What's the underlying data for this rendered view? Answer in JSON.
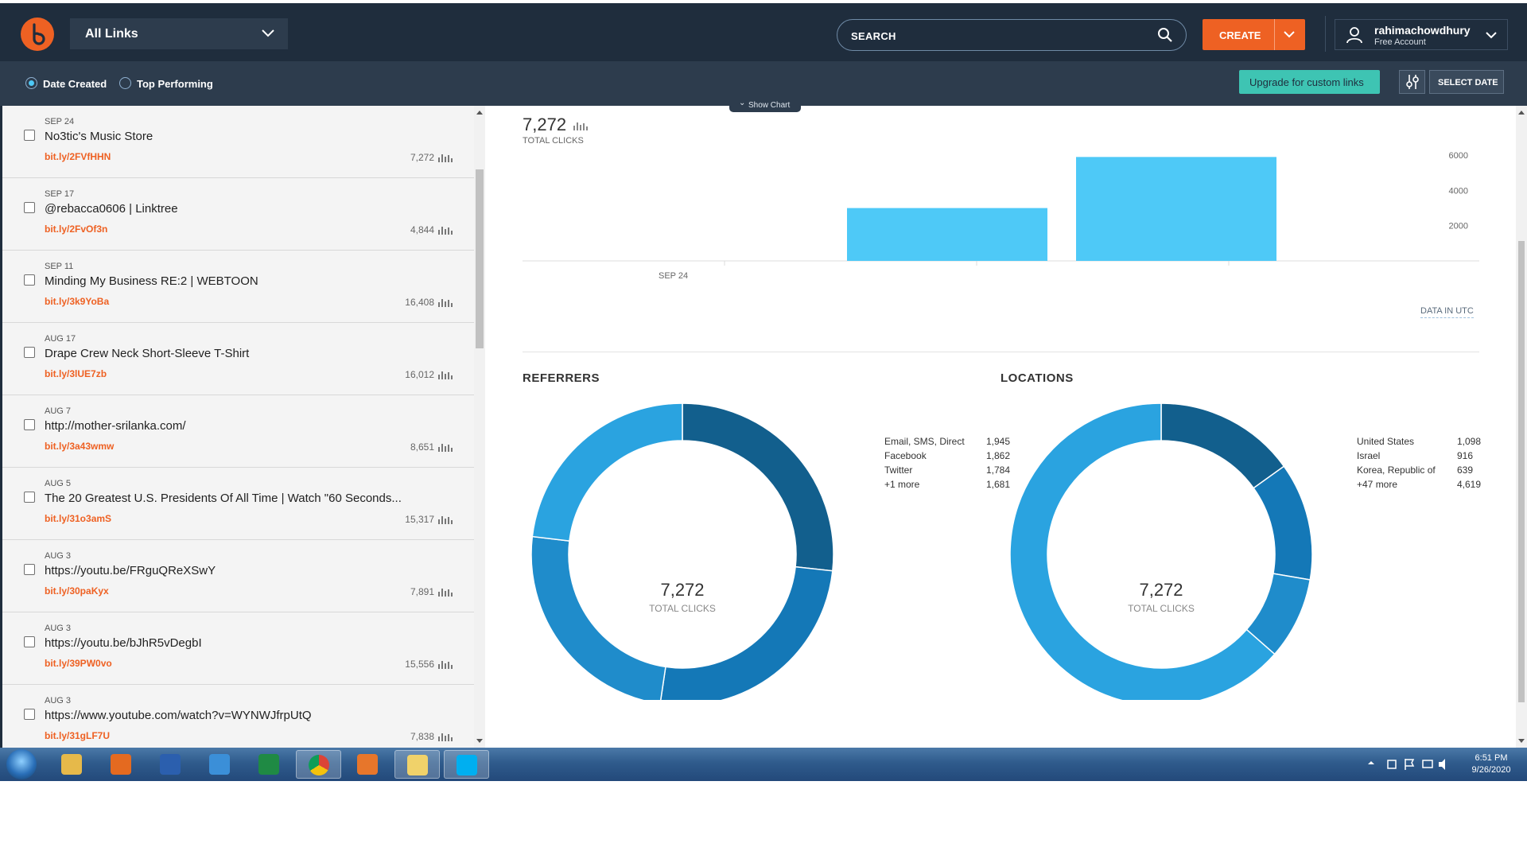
{
  "header": {
    "links_dropdown": "All Links",
    "search_placeholder": "SEARCH",
    "create_label": "CREATE",
    "account": {
      "username": "rahimachowdhury",
      "plan": "Free Account"
    }
  },
  "subheader": {
    "sort_options": [
      "Date Created",
      "Top Performing"
    ],
    "selected_sort": "Date Created",
    "upgrade_label": "Upgrade for custom links",
    "select_date_label": "SELECT DATE",
    "show_chart_label": "Show Chart"
  },
  "links": [
    {
      "date": "SEP 24",
      "title": "No3tic's Music Store",
      "short": "bit.ly/2FVfHHN",
      "clicks": "7,272"
    },
    {
      "date": "SEP 17",
      "title": "@rebacca0606 | Linktree",
      "short": "bit.ly/2FvOf3n",
      "clicks": "4,844"
    },
    {
      "date": "SEP 11",
      "title": "Minding My Business RE:2 | WEBTOON",
      "short": "bit.ly/3k9YoBa",
      "clicks": "16,408"
    },
    {
      "date": "AUG 17",
      "title": "Drape Crew Neck Short-Sleeve T-Shirt",
      "short": "bit.ly/3lUE7zb",
      "clicks": "16,012"
    },
    {
      "date": "AUG 7",
      "title": "http://mother-srilanka.com/",
      "short": "bit.ly/3a43wmw",
      "clicks": "8,651"
    },
    {
      "date": "AUG 5",
      "title": "The 20 Greatest U.S. Presidents Of All Time | Watch \"60 Seconds...",
      "short": "bit.ly/31o3amS",
      "clicks": "15,317"
    },
    {
      "date": "AUG 3",
      "title": "https://youtu.be/FRguQReXSwY",
      "short": "bit.ly/30paKyx",
      "clicks": "7,891"
    },
    {
      "date": "AUG 3",
      "title": "https://youtu.be/bJhR5vDegbI",
      "short": "bit.ly/39PW0vo",
      "clicks": "15,556"
    },
    {
      "date": "AUG 3",
      "title": "https://www.youtube.com/watch?v=WYNWJfrpUtQ",
      "short": "bit.ly/31gLF7U",
      "clicks": "7,838"
    }
  ],
  "detail": {
    "total_clicks": "7,272",
    "total_clicks_label": "TOTAL CLICKS",
    "data_in_utc": "DATA IN UTC",
    "referrers_title": "REFERRERS",
    "locations_title": "LOCATIONS"
  },
  "chart_data": [
    {
      "type": "bar",
      "categories": [
        "SEP 24",
        "",
        ""
      ],
      "values": [
        0,
        3000,
        5900
      ],
      "ylim": [
        0,
        7000
      ],
      "yticks": [
        2000,
        4000,
        6000
      ],
      "color": "#4ec9f7"
    },
    {
      "type": "pie",
      "labels": [
        "Email, SMS, Direct",
        "Facebook",
        "Twitter",
        "+1 more"
      ],
      "values": [
        1945,
        1862,
        1784,
        1681
      ],
      "value_labels": [
        "1,945",
        "1,862",
        "1,784",
        "1,681"
      ],
      "colors": [
        "#125f8d",
        "#1478b7",
        "#1f8ccb",
        "#2aa3e0"
      ],
      "center_value": "7,272",
      "center_label": "TOTAL CLICKS"
    },
    {
      "type": "pie",
      "labels": [
        "United States",
        "Israel",
        "Korea, Republic of",
        "+47 more"
      ],
      "values": [
        1098,
        916,
        639,
        4619
      ],
      "value_labels": [
        "1,098",
        "916",
        "639",
        "4,619"
      ],
      "colors": [
        "#125f8d",
        "#1478b7",
        "#1f8ccb",
        "#2aa3e0"
      ],
      "center_value": "7,272",
      "center_label": "TOTAL CLICKS"
    }
  ],
  "taskbar": {
    "apps": [
      "explorer-icon",
      "firefox-icon",
      "word-icon",
      "ie-icon",
      "excel-icon",
      "chrome-icon",
      "media-icon",
      "folder-icon",
      "skype-icon"
    ],
    "time": "6:51 PM",
    "date": "9/26/2020"
  },
  "colors": {
    "brand": "#ee6123",
    "header": "#1f2d3d",
    "bar": "#4ec9f7",
    "upgrade": "#3ec4b3"
  }
}
